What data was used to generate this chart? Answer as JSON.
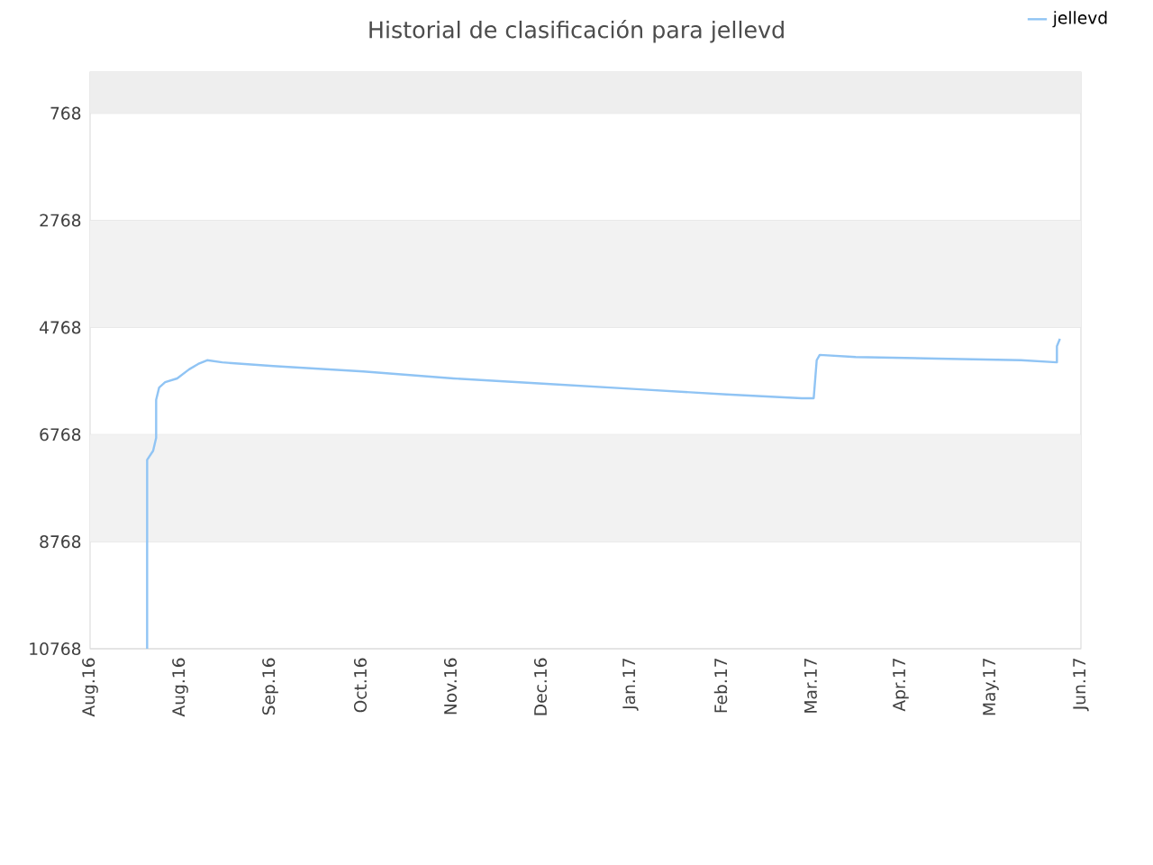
{
  "chart_data": {
    "type": "line",
    "title": "Historial de clasificación para jellevd",
    "x": [
      "2016-08-20",
      "2016-08-20",
      "2016-08-22",
      "2016-08-23",
      "2016-08-23",
      "2016-08-24",
      "2016-08-26",
      "2016-08-30",
      "2016-09-03",
      "2016-09-06",
      "2016-09-09",
      "2016-09-14",
      "2016-10-01",
      "2016-10-31",
      "2016-11-30",
      "2016-12-31",
      "2017-01-30",
      "2017-03-01",
      "2017-03-26",
      "2017-03-30",
      "2017-03-31",
      "2017-04-01",
      "2017-04-13",
      "2017-05-10",
      "2017-06-07",
      "2017-06-19",
      "2017-06-19",
      "2017-06-20"
    ],
    "series": [
      {
        "name": "jellevd",
        "color": "#90c4f4",
        "values": [
          10768,
          7240,
          7070,
          6830,
          6120,
          5890,
          5790,
          5720,
          5550,
          5450,
          5380,
          5420,
          5490,
          5590,
          5720,
          5820,
          5920,
          6020,
          6090,
          6090,
          5380,
          5280,
          5320,
          5350,
          5380,
          5420,
          5120,
          4980
        ]
      }
    ],
    "xlim": [
      "2016-08-01",
      "2017-06-27"
    ],
    "xticks": [
      {
        "value": "2016-08-01",
        "label": "Aug.16"
      },
      {
        "value": "2016-08-31",
        "label": "Aug.16"
      },
      {
        "value": "2016-09-30",
        "label": "Sep.16"
      },
      {
        "value": "2016-10-30",
        "label": "Oct.16"
      },
      {
        "value": "2016-11-29",
        "label": "Nov.16"
      },
      {
        "value": "2016-12-29",
        "label": "Dec.16"
      },
      {
        "value": "2017-01-28",
        "label": "Jan.17"
      },
      {
        "value": "2017-02-27",
        "label": "Feb.17"
      },
      {
        "value": "2017-03-29",
        "label": "Mar.17"
      },
      {
        "value": "2017-04-28",
        "label": "Apr.17"
      },
      {
        "value": "2017-05-28",
        "label": "May.17"
      },
      {
        "value": "2017-06-27",
        "label": "Jun.17"
      }
    ],
    "ylim": [
      10768,
      0
    ],
    "yticks": [
      768,
      2768,
      4768,
      6768,
      8768,
      10768
    ],
    "bands": [
      {
        "axis": "y",
        "from": 0,
        "to": 768,
        "color": "#eeeeee"
      },
      {
        "axis": "y",
        "from": 2768,
        "to": 4768,
        "color": "#f2f2f2"
      },
      {
        "axis": "y",
        "from": 6768,
        "to": 8768,
        "color": "#f2f2f2"
      }
    ],
    "grid": "y",
    "legend": "top right"
  }
}
